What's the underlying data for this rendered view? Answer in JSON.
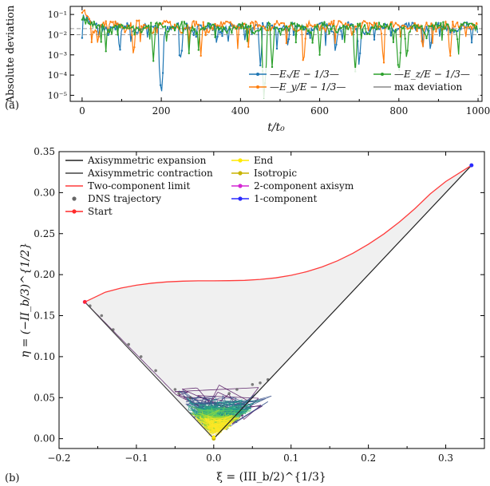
{
  "chart_data": [
    {
      "type": "line",
      "panel_label": "(a)",
      "ylabel": "Absolute deviation",
      "xlabel": "t/t₀",
      "xlim": [
        -30,
        1010
      ],
      "ylim_log10": [
        -5.3,
        -0.6
      ],
      "xticks": [
        0,
        200,
        400,
        600,
        800,
        1000
      ],
      "yticks": [
        {
          "exp": -1,
          "label": "10⁻¹"
        },
        {
          "exp": -2,
          "label": "10⁻²"
        },
        {
          "exp": -3,
          "label": "10⁻³"
        },
        {
          "exp": -4,
          "label": "10⁻⁴"
        },
        {
          "exp": -5,
          "label": "10⁻⁵"
        }
      ],
      "max_deviation_lines": [
        0.01,
        0.02
      ],
      "series": [
        {
          "name": "x",
          "label": "—Eₓ/E − 1/3—",
          "color": "#1f77b4",
          "base": 0.028,
          "phase": 0.3,
          "dips": [
            [
              95,
              0.0009
            ],
            [
              200,
              8e-06
            ],
            [
              250,
              0.0004
            ],
            [
              340,
              0.002
            ],
            [
              450,
              0.0003
            ],
            [
              520,
              0.0015
            ],
            [
              640,
              0.0008
            ],
            [
              700,
              0.0003
            ],
            [
              880,
              0.001
            ]
          ]
        },
        {
          "name": "y",
          "label": "—E_y/E − 1/3—",
          "color": "#ff7f0e",
          "base": 0.035,
          "phase": 1.7,
          "dips": [
            [
              40,
              0.002
            ],
            [
              130,
              0.0006
            ],
            [
              300,
              0.0009
            ],
            [
              420,
              0.0025
            ],
            [
              560,
              0.0004
            ],
            [
              760,
              0.0007
            ],
            [
              860,
              0.0012
            ],
            [
              930,
              0.0009
            ]
          ]
        },
        {
          "name": "z",
          "label": "—E_z/E − 1/3—",
          "color": "#2ca02c",
          "base": 0.03,
          "phase": 3.1,
          "dips": [
            [
              60,
              0.0015
            ],
            [
              180,
              0.0005
            ],
            [
              270,
              0.0012
            ],
            [
              460,
              1e-05
            ],
            [
              480,
              0.00025
            ],
            [
              600,
              0.001
            ],
            [
              690,
              0.00015
            ],
            [
              800,
              8e-05
            ],
            [
              820,
              0.0004
            ],
            [
              950,
              0.0015
            ]
          ]
        }
      ],
      "legend_extra": {
        "label": "max deviation",
        "color": "#888888"
      }
    },
    {
      "type": "line",
      "panel_label": "(b)",
      "xlabel": "ξ = (III_b/2)^{1/3}",
      "ylabel": "η = (−II_b/3)^{1/2}",
      "xlim": [
        -0.2,
        0.35
      ],
      "ylim": [
        -0.012,
        0.35
      ],
      "xticks": [
        {
          "v": -0.2,
          "label": "−0.2"
        },
        {
          "v": -0.1,
          "label": "−0.1"
        },
        {
          "v": 0.0,
          "label": "0.0"
        },
        {
          "v": 0.1,
          "label": "0.1"
        },
        {
          "v": 0.2,
          "label": "0.2"
        },
        {
          "v": 0.3,
          "label": "0.3"
        }
      ],
      "yticks": [
        0.0,
        0.05,
        0.1,
        0.15,
        0.2,
        0.25,
        0.3,
        0.35
      ],
      "axisym_expansion_end": [
        0.3333,
        0.3333
      ],
      "axisym_contraction_end": [
        -0.1667,
        0.1667
      ],
      "two_component_limit": [
        [
          -0.1667,
          0.1667
        ],
        [
          -0.14,
          0.1786
        ],
        [
          -0.12,
          0.1836
        ],
        [
          -0.1,
          0.1871
        ],
        [
          -0.08,
          0.1896
        ],
        [
          -0.06,
          0.1912
        ],
        [
          -0.04,
          0.1921
        ],
        [
          -0.02,
          0.1925
        ],
        [
          0.0,
          0.1925
        ],
        [
          0.02,
          0.1926
        ],
        [
          0.04,
          0.193
        ],
        [
          0.06,
          0.1942
        ],
        [
          0.08,
          0.1961
        ],
        [
          0.1,
          0.1992
        ],
        [
          0.12,
          0.2035
        ],
        [
          0.14,
          0.2094
        ],
        [
          0.16,
          0.2169
        ],
        [
          0.18,
          0.2261
        ],
        [
          0.2,
          0.237
        ],
        [
          0.22,
          0.2496
        ],
        [
          0.24,
          0.2641
        ],
        [
          0.26,
          0.2804
        ],
        [
          0.28,
          0.2985
        ],
        [
          0.3,
          0.3135
        ],
        [
          0.3333,
          0.3333
        ]
      ],
      "dns_markers": [
        [
          -0.1667,
          0.1667
        ],
        [
          -0.16,
          0.162
        ],
        [
          -0.145,
          0.15
        ],
        [
          -0.13,
          0.133
        ],
        [
          -0.11,
          0.115
        ],
        [
          -0.094,
          0.1
        ],
        [
          -0.075,
          0.083
        ],
        [
          -0.05,
          0.06
        ],
        [
          -0.045,
          0.055
        ],
        [
          -0.03,
          0.05
        ],
        [
          0.02,
          0.055
        ],
        [
          0.03,
          0.06
        ],
        [
          0.05,
          0.066
        ],
        [
          0.06,
          0.068
        ],
        [
          0.07,
          0.072
        ]
      ],
      "points": {
        "start": [
          -0.1667,
          0.1667
        ],
        "end": [
          0.0,
          0.002
        ],
        "isotropic": [
          0.0,
          0.0
        ],
        "two_comp_axisym": [
          -0.1667,
          0.1667
        ],
        "one_component": [
          0.3333,
          0.3333
        ]
      },
      "legend": [
        {
          "label": "Axisymmetric expansion",
          "kind": "line",
          "color": "#222222"
        },
        {
          "label": "Axisymmetric contraction",
          "kind": "line",
          "color": "#444444"
        },
        {
          "label": "Two-component limit",
          "kind": "line",
          "color": "#ff3b3b"
        },
        {
          "label": "DNS trajectory",
          "kind": "dot",
          "color": "#666666"
        },
        {
          "label": "Start",
          "kind": "linedot",
          "color": "#ff2a2a"
        },
        {
          "label": "End",
          "kind": "linedot",
          "color": "#ffea00"
        },
        {
          "label": "Isotropic",
          "kind": "linedot",
          "color": "#c8b400"
        },
        {
          "label": "2-component axisym",
          "kind": "linedot",
          "color": "#d426d4"
        },
        {
          "label": "1-component",
          "kind": "linedot",
          "color": "#2a2aff"
        }
      ]
    }
  ]
}
